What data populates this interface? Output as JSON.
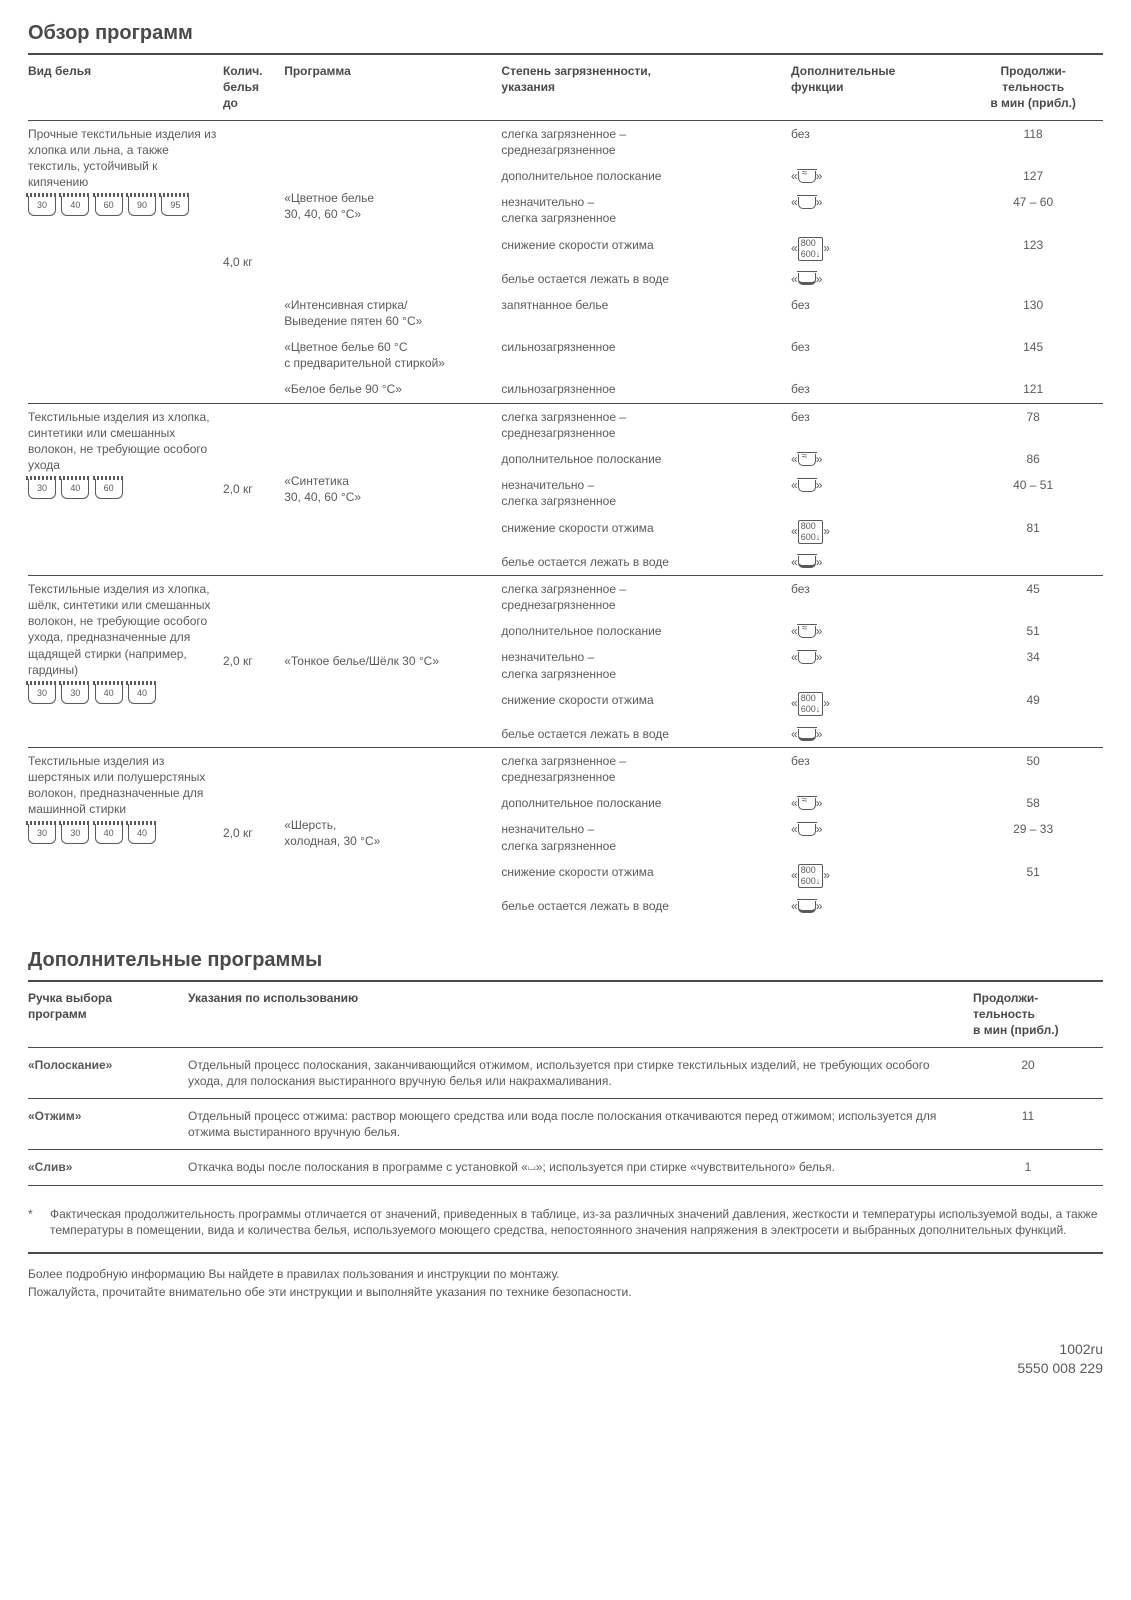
{
  "title_main": "Обзор программ",
  "title_sup": "Дополнительные программы",
  "headers": {
    "fabric": "Вид белья",
    "weight": "Колич.\nбелья\nдо",
    "program": "Программа",
    "soil": "Степень загрязненности,\nуказания",
    "func": "Дополнительные\nфункции",
    "dur": "Продолжи-\nтельность\nв мин (прибл.)"
  },
  "func_labels": {
    "none": "без",
    "rinse": "«≈≈»",
    "mild": "«⌣»",
    "spin": "«800↓600»",
    "soak": "«⏘»"
  },
  "groups": [
    {
      "fabric": "Прочные текстильные изделия из хлопка или льна, а также текстиль, устойчивый к кипячению",
      "icons": [
        "30",
        "40",
        "60",
        "90",
        "95"
      ],
      "weight": "4,0 кг",
      "programs": [
        {
          "name": "«Цветное белье\n30, 40, 60 °C»",
          "rows": [
            {
              "soil": "слегка загрязненное –\nсреднезагрязненное",
              "func": "none",
              "dur": "118"
            },
            {
              "soil": "дополнительное полоскание",
              "func": "rinse",
              "dur": "127"
            },
            {
              "soil": "незначительно –\nслегка загрязненное",
              "func": "mild",
              "dur": "47 – 60"
            },
            {
              "soil": "снижение скорости отжима",
              "func": "spin",
              "dur": "123"
            },
            {
              "soil": "белье остается лежать в воде",
              "func": "soak",
              "dur": ""
            }
          ]
        },
        {
          "name": "«Интенсивная стирка/\nВыведение пятен 60 °C»",
          "rows": [
            {
              "soil": "запятнанное белье",
              "func": "none",
              "dur": "130"
            }
          ]
        },
        {
          "name": "«Цветное белье  60 °C\nс предварительной стиркой»",
          "rows": [
            {
              "soil": "сильнозагрязненное",
              "func": "none",
              "dur": "145"
            }
          ]
        },
        {
          "name": "«Белое белье 90 °C»",
          "rows": [
            {
              "soil": "сильнозагрязненное",
              "func": "none",
              "dur": "121"
            }
          ]
        }
      ]
    },
    {
      "fabric": "Текстильные изделия из хлопка, синтетики или смешанных волокон, не требующие особого ухода",
      "icons": [
        "30",
        "40",
        "60"
      ],
      "weight": "2,0 кг",
      "programs": [
        {
          "name": "«Синтетика\n30, 40, 60 °C»",
          "rows": [
            {
              "soil": "слегка загрязненное –\nсреднезагрязненное",
              "func": "none",
              "dur": "78"
            },
            {
              "soil": "дополнительное полоскание",
              "func": "rinse",
              "dur": "86"
            },
            {
              "soil": "незначительно –\nслегка загрязненное",
              "func": "mild",
              "dur": "40 – 51"
            },
            {
              "soil": "снижение скорости отжима",
              "func": "spin",
              "dur": "81"
            },
            {
              "soil": "белье остается лежать в воде",
              "func": "soak",
              "dur": ""
            }
          ]
        }
      ]
    },
    {
      "fabric": "Текстильные изделия из хлопка, шёлк, синтетики или смешанных волокон, не требующие особого ухода, предназначенные для щадящей стирки (например, гардины)",
      "icons": [
        "30",
        "30",
        "40",
        "40"
      ],
      "weight": "2,0 кг",
      "programs": [
        {
          "name": "«Тонкое белье/Шёлк 30 °C»",
          "rows": [
            {
              "soil": "слегка загрязненное –\nсреднезагрязненное",
              "func": "none",
              "dur": "45"
            },
            {
              "soil": "дополнительное полоскание",
              "func": "rinse",
              "dur": "51"
            },
            {
              "soil": "незначительно –\nслегка загрязненное",
              "func": "mild",
              "dur": "34"
            },
            {
              "soil": "снижение скорости отжима",
              "func": "spin",
              "dur": "49"
            },
            {
              "soil": "белье остается лежать в воде",
              "func": "soak",
              "dur": ""
            }
          ]
        }
      ]
    },
    {
      "fabric": "Текстильные изделия из шерстяных или полушерстяных волокон, предназначенные для машинной стирки",
      "icons": [
        "30",
        "30",
        "40",
        "40"
      ],
      "weight": "2,0 кг",
      "programs": [
        {
          "name": "«Шерсть,\nхолодная, 30 °C»",
          "rows": [
            {
              "soil": "слегка загрязненное –\nсреднезагрязненное",
              "func": "none",
              "dur": "50"
            },
            {
              "soil": "дополнительное полоскание",
              "func": "rinse",
              "dur": "58"
            },
            {
              "soil": "незначительно –\nслегка загрязненное",
              "func": "mild",
              "dur": "29 – 33"
            },
            {
              "soil": "снижение скорости отжима",
              "func": "spin",
              "dur": "51"
            },
            {
              "soil": "белье остается лежать в воде",
              "func": "soak",
              "dur": ""
            }
          ]
        }
      ]
    }
  ],
  "sup_headers": {
    "name": "Ручка выбора\nпрограмм",
    "desc": "Указания по использованию",
    "dur": "Продолжи-\nтельность\nв мин (прибл.)"
  },
  "sup_rows": [
    {
      "name": "«Полоскание»",
      "desc": "Отдельный процесс полоскания, заканчивающийся отжимом, используется при стирке текстильных изделий, не требующих особого ухода, для полоскания выстиранного вручную белья или накрахмаливания.",
      "dur": "20"
    },
    {
      "name": "«Отжим»",
      "desc": "Отдельный процесс отжима: раствор моющего средства или вода после полоскания откачиваются перед отжимом; используется для отжима выстиранного вручную белья.",
      "dur": "11"
    },
    {
      "name": "«Слив»",
      "desc": "Откачка воды после полоскания в программе с установкой «⏘»; используется при стирке «чувствительного» белья.",
      "dur": "1"
    }
  ],
  "footnote": "Фактическая продолжительность программы отличается от значений, приведенных в таблице, из-за различных значений давления, жесткости и температуры используемой воды, а также температуры в помещении, вида и количества белья, используемого моющего средства, непостоянного значения напряжения в электросети и выбранных дополнительных функций.",
  "closing1": "Более подробную информацию Вы найдете в правилах пользования и инструкции по монтажу.",
  "closing2": "Пожалуйста, прочитайте внимательно обе эти инструкции и выполняйте указания по технике безопасности.",
  "foot1": "1002ru",
  "foot2": "5550 008 229"
}
